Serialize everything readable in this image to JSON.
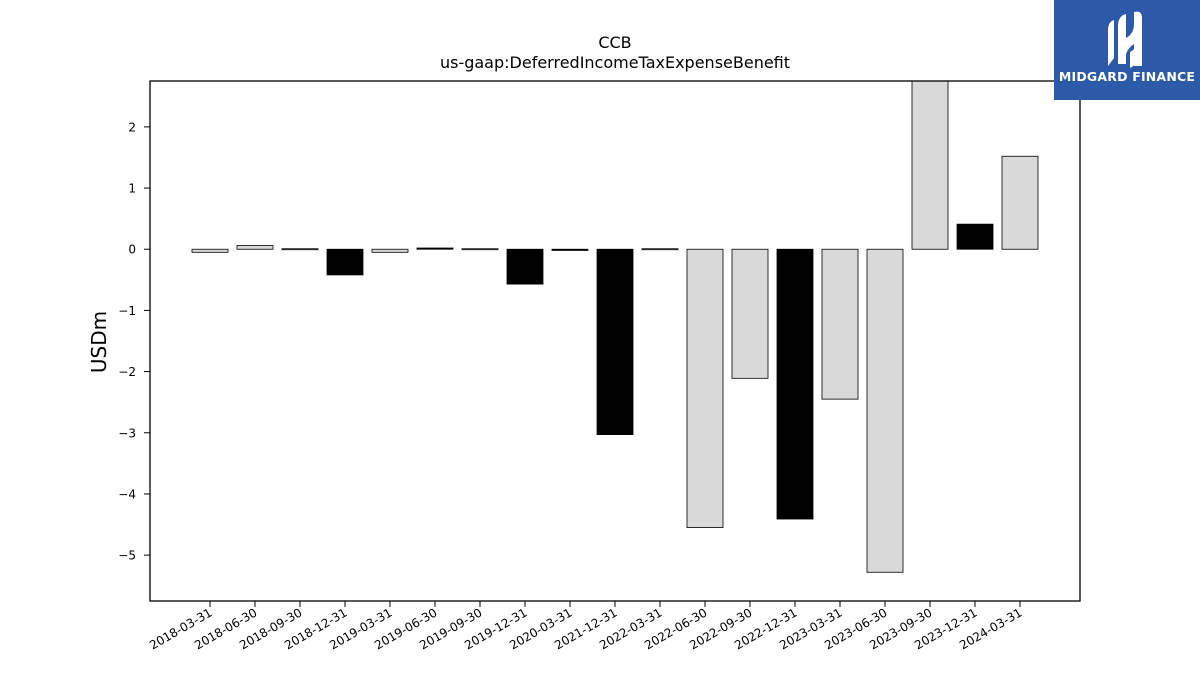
{
  "chart_data": {
    "type": "bar",
    "title": "CCB",
    "subtitle": "us-gaap:DeferredIncomeTaxExpenseBenefit",
    "xlabel": "",
    "ylabel": "USDm",
    "ylim": [
      -5.75,
      2.75
    ],
    "yticks": [
      2,
      1,
      0,
      -1,
      -2,
      -3,
      -4,
      -5
    ],
    "ytick_labels": [
      "2",
      "1",
      "0",
      "−1",
      "−2",
      "−3",
      "−4",
      "−5"
    ],
    "grid": false,
    "categories": [
      "2018-03-31",
      "2018-06-30",
      "2018-09-30",
      "2018-12-31",
      "2019-03-31",
      "2019-06-30",
      "2019-09-30",
      "2019-12-31",
      "2020-03-31",
      "2021-12-31",
      "2022-03-31",
      "2022-06-30",
      "2022-09-30",
      "2022-12-31",
      "2023-03-31",
      "2023-06-30",
      "2023-09-30",
      "2023-12-31",
      "2024-03-31"
    ],
    "values": [
      -0.05,
      0.06,
      -0.01,
      -0.42,
      -0.05,
      0.02,
      -0.01,
      -0.57,
      -0.02,
      -3.03,
      -0.01,
      -4.55,
      -2.11,
      -4.41,
      -2.45,
      -5.28,
      2.75,
      0.41,
      1.52
    ],
    "bar_colors": [
      "#d9d9d9",
      "#d9d9d9",
      "#d9d9d9",
      "#000000",
      "#d9d9d9",
      "#000000",
      "#d9d9d9",
      "#000000",
      "#000000",
      "#000000",
      "#d9d9d9",
      "#d9d9d9",
      "#d9d9d9",
      "#000000",
      "#d9d9d9",
      "#d9d9d9",
      "#d9d9d9",
      "#000000",
      "#d9d9d9"
    ]
  },
  "logo": {
    "text": "MIDGARD FINANCE",
    "background": "#2c5aa8"
  }
}
